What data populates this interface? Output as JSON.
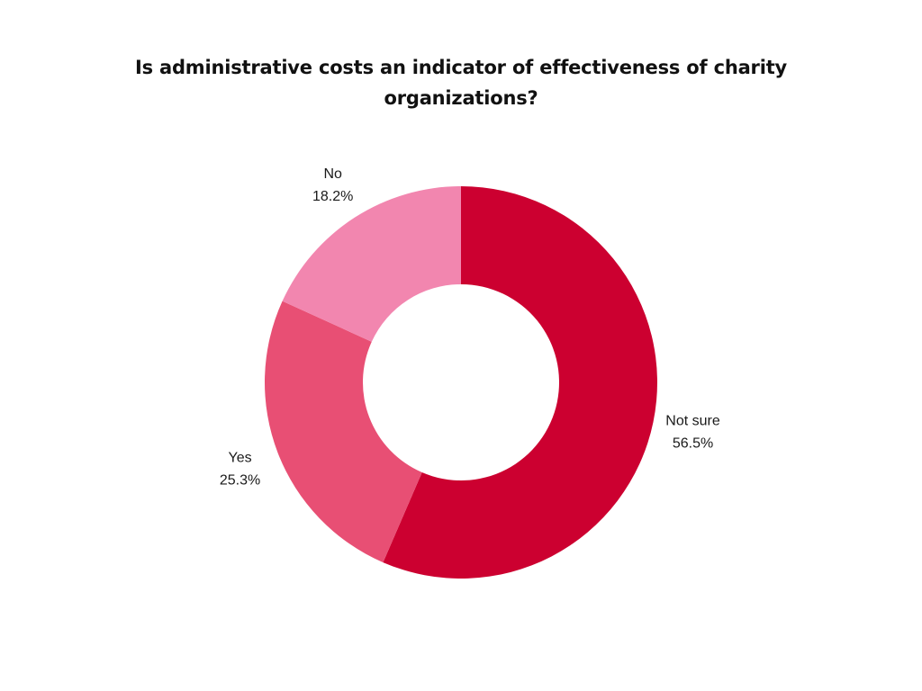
{
  "chart_data": {
    "type": "pie",
    "variant": "donut",
    "title": "Is administrative costs an indicator of effectiveness of charity organizations?",
    "categories": [
      "Not sure",
      "Yes",
      "No"
    ],
    "values": [
      56.5,
      25.3,
      18.2
    ],
    "value_labels": [
      "56.5%",
      "25.3%",
      "18.2%"
    ],
    "colors": [
      "#cc0030",
      "#e84f74",
      "#f286af"
    ],
    "legend": "none"
  }
}
